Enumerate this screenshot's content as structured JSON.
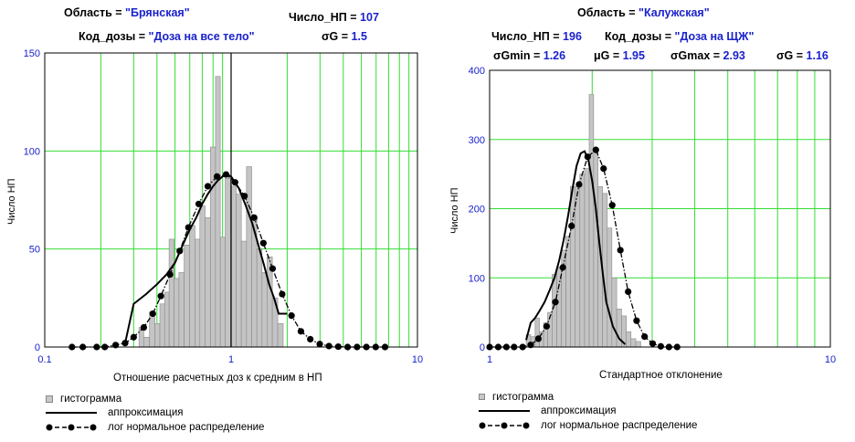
{
  "chart_data": [
    {
      "type": "bar",
      "header": {
        "region_label": "Область = ",
        "region_value": "\"Брянская\"",
        "count_label": "Число_НП = ",
        "count_value": "107",
        "dose_label": "Код_дозы = ",
        "dose_value": "\"Доза на все тело\"",
        "sigma_label": "σG = ",
        "sigma_value": "1.5"
      },
      "xlabel": "Отношение расчетных доз к средним в НП",
      "ylabel": "Число НП",
      "x_scale": "log",
      "xlim": [
        0.1,
        10
      ],
      "ylim": [
        0,
        150
      ],
      "x_ticks": [
        "0.1",
        "1",
        "10"
      ],
      "y_ticks": [
        "0",
        "50",
        "100",
        "150"
      ],
      "grid": true,
      "legend_position": "bottom-left",
      "legend": {
        "histogram": "гистограмма",
        "approximation": "аппроксимация",
        "lognormal": "лог нормальное распределение"
      },
      "histogram": {
        "x": [
          0.33,
          0.35,
          0.38,
          0.4,
          0.43,
          0.45,
          0.48,
          0.51,
          0.54,
          0.58,
          0.62,
          0.66,
          0.7,
          0.75,
          0.8,
          0.85,
          0.9,
          0.96,
          1.03,
          1.1,
          1.17,
          1.25,
          1.33,
          1.42,
          1.51,
          1.61,
          1.72,
          1.84
        ],
        "values": [
          10,
          5,
          18,
          12,
          22,
          28,
          55,
          35,
          38,
          52,
          62,
          55,
          72,
          66,
          102,
          138,
          56,
          86,
          82,
          78,
          54,
          92,
          66,
          50,
          38,
          46,
          25,
          12
        ]
      },
      "approximation": {
        "x": [
          0.27,
          0.3,
          0.35,
          0.4,
          0.45,
          0.5,
          0.55,
          0.6,
          0.65,
          0.7,
          0.75,
          0.8,
          0.85,
          0.9,
          0.95,
          1.0,
          1.1,
          1.2,
          1.3,
          1.4,
          1.5,
          1.6,
          1.7,
          1.8,
          2.0
        ],
        "values": [
          2,
          22,
          27,
          32,
          37,
          43,
          52,
          60,
          66,
          73,
          78,
          82,
          85,
          87,
          88,
          87,
          81,
          72,
          63,
          52,
          42,
          32,
          25,
          17,
          17
        ]
      },
      "lognormal": {
        "x": [
          0.14,
          0.16,
          0.19,
          0.21,
          0.24,
          0.27,
          0.3,
          0.34,
          0.38,
          0.42,
          0.47,
          0.53,
          0.59,
          0.67,
          0.75,
          0.84,
          0.94,
          1.05,
          1.18,
          1.33,
          1.49,
          1.67,
          1.88,
          2.11,
          2.37,
          2.66,
          2.99,
          3.35,
          3.76,
          4.22,
          4.74,
          5.32,
          5.97,
          6.7
        ],
        "values": [
          0,
          0,
          0,
          0,
          1,
          2,
          5,
          10,
          17,
          26,
          37,
          49,
          61,
          73,
          82,
          87,
          88,
          84,
          77,
          66,
          53,
          40,
          27,
          16,
          8,
          4,
          1.5,
          0.5,
          0.2,
          0,
          0,
          0,
          0,
          0
        ]
      }
    },
    {
      "type": "bar",
      "header": {
        "region_label": "Область = ",
        "region_value": "\"Калужская\"",
        "count_label": "Число_НП = ",
        "count_value": "196",
        "dose_label": "Код_дозы = ",
        "dose_value": "\"Доза на ЩЖ\"",
        "sgmin_label": "σGmin = ",
        "sgmin_value": "1.26",
        "mu_label": "μG = ",
        "mu_value": "1.95",
        "sgmax_label": "σGmax = ",
        "sgmax_value": "2.93",
        "sigma_label": "σG = ",
        "sigma_value": "1.16"
      },
      "xlabel": "Стандартное отклонение",
      "ylabel": "Число НП",
      "x_scale": "log",
      "xlim": [
        1,
        10
      ],
      "ylim": [
        0,
        400
      ],
      "x_ticks": [
        "1",
        "10"
      ],
      "y_ticks": [
        "0",
        "100",
        "200",
        "300",
        "400"
      ],
      "grid": true,
      "legend_position": "bottom-left",
      "legend": {
        "histogram": "гистограмма",
        "approximation": "аппроксимация",
        "lognormal": "лог нормальное распределение"
      },
      "histogram": {
        "x": [
          1.3,
          1.34,
          1.38,
          1.42,
          1.46,
          1.5,
          1.55,
          1.6,
          1.65,
          1.7,
          1.75,
          1.81,
          1.87,
          1.93,
          1.99,
          2.05,
          2.11,
          2.18,
          2.25,
          2.32,
          2.4,
          2.48,
          2.56,
          2.64,
          2.73
        ],
        "values": [
          18,
          15,
          42,
          22,
          35,
          50,
          105,
          115,
          140,
          160,
          232,
          232,
          250,
          258,
          365,
          285,
          232,
          222,
          172,
          100,
          55,
          45,
          22,
          12,
          8
        ]
      },
      "approximation": {
        "x": [
          1.28,
          1.32,
          1.36,
          1.4,
          1.45,
          1.5,
          1.55,
          1.6,
          1.65,
          1.7,
          1.75,
          1.8,
          1.85,
          1.9,
          1.95,
          2.0,
          2.05,
          2.1,
          2.15,
          2.2,
          2.3,
          2.4,
          2.5
        ],
        "values": [
          10,
          35,
          42,
          52,
          65,
          82,
          100,
          125,
          155,
          190,
          228,
          262,
          280,
          283,
          270,
          240,
          200,
          150,
          105,
          65,
          30,
          12,
          4
        ]
      },
      "lognormal": {
        "x": [
          1.0,
          1.06,
          1.12,
          1.18,
          1.25,
          1.32,
          1.39,
          1.47,
          1.56,
          1.64,
          1.74,
          1.83,
          1.94,
          2.05,
          2.16,
          2.29,
          2.42,
          2.55,
          2.7,
          2.85,
          3.01,
          3.18,
          3.36,
          3.55
        ],
        "values": [
          0,
          0,
          0,
          0,
          0,
          3,
          12,
          30,
          65,
          115,
          175,
          235,
          275,
          285,
          258,
          205,
          140,
          80,
          38,
          15,
          5,
          1,
          0,
          0
        ]
      }
    }
  ]
}
